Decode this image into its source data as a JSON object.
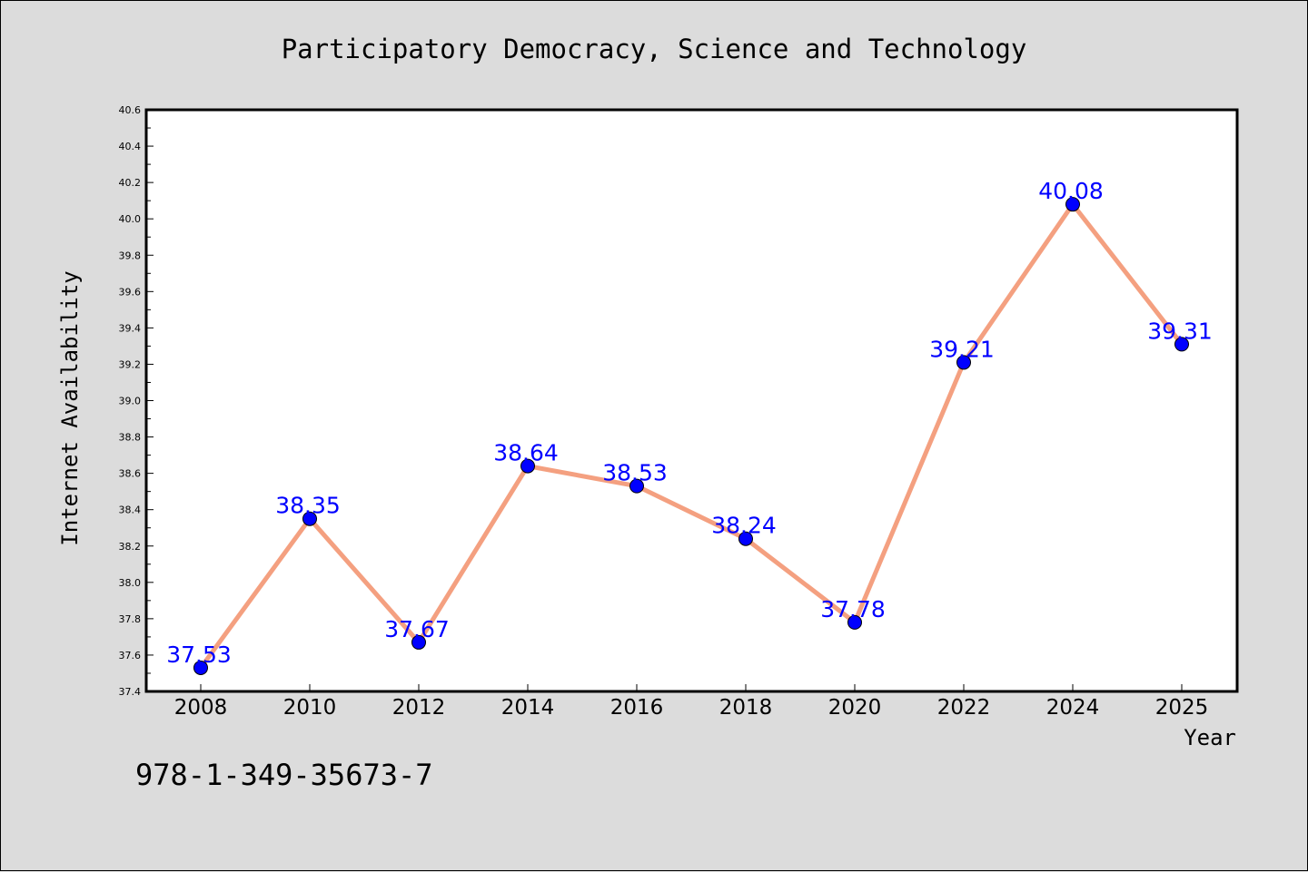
{
  "footer_note": "978-1-349-35673-7",
  "chart_data": {
    "type": "line",
    "title": "Participatory Democracy, Science and Technology",
    "xlabel": "Year",
    "ylabel": "Internet Availability",
    "x": [
      "2008",
      "2010",
      "2012",
      "2014",
      "2016",
      "2018",
      "2020",
      "2022",
      "2024",
      "2025"
    ],
    "values": [
      37.53,
      38.35,
      37.67,
      38.64,
      38.53,
      38.24,
      37.78,
      39.21,
      40.08,
      39.31
    ],
    "data_labels": [
      "37.53",
      "38.35",
      "37.67",
      "38.64",
      "38.53",
      "38.24",
      "37.78",
      "39.21",
      "40.08",
      "39.31"
    ],
    "ylim": [
      37.4,
      40.6
    ],
    "y_ticks": [
      "37.4",
      "37.6",
      "37.8",
      "38.0",
      "38.2",
      "38.4",
      "38.6",
      "38.8",
      "39.0",
      "39.2",
      "39.4",
      "39.6",
      "39.8",
      "40.0",
      "40.2",
      "40.4",
      "40.6"
    ],
    "grid": false,
    "legend": "none",
    "colors": {
      "line": "#f4a080",
      "marker": "#0000ff",
      "data_label": "#0000ff",
      "plot_background": "#ffffff",
      "figure_background": "#dcdcdc"
    }
  }
}
